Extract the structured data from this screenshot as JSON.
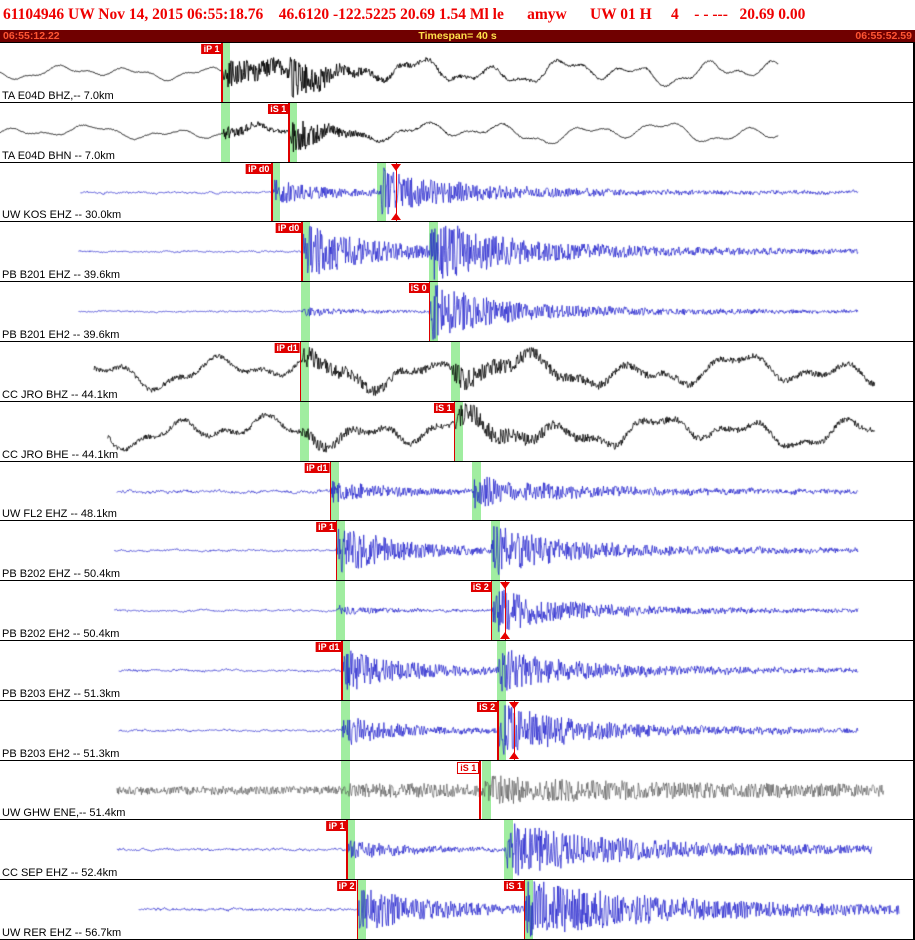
{
  "header": {
    "text": "61104946 UW Nov 14, 2015 06:55:18.76    46.6120 -122.5225 20.69 1.54 Ml le      amyw      UW 01 H     4    - - ---   20.69 0.00",
    "color": "#ee0000"
  },
  "timebar": {
    "start_time": "06:55:12.22",
    "timespan_label": "Timespan= 40 s",
    "end_time": "06:55:52.59",
    "bg": "#700000",
    "time_color": "#ff5533",
    "center_color": "#ffe04a"
  },
  "colors": {
    "band": "#a0eda0",
    "pick_line": "#dd0000",
    "flag_bg": "#e00000",
    "flag_text": "#ffffff",
    "triangle": "#e80000"
  },
  "traces": [
    {
      "id": "ta-e04d-bhz",
      "label": "TA E04D BHZ,-- 7.0km",
      "color": "#000000",
      "lw": 0.9,
      "seed": 101,
      "start_x": 0.0,
      "end_x": 0.853,
      "noise": 0.5,
      "fuzz": 0.3,
      "lf_amp": 5.5,
      "lf_period": 72,
      "post_lf_amp": 10,
      "post_lf_from": 0.36,
      "p_x": 0.2435,
      "p_amp": 13,
      "p_decay": 60,
      "s_x": 0.3165,
      "s_amp": 25,
      "s_decay": 22,
      "s_slow": 0.05,
      "bands": [
        0.2426
      ],
      "picks": [
        {
          "label": "iP 1",
          "x": 0.2426,
          "style": "solid"
        }
      ],
      "triangles": []
    },
    {
      "id": "ta-e04d-bhn",
      "label": "TA E04D BHN -- 7.0km",
      "color": "#000000",
      "lw": 0.9,
      "seed": 202,
      "start_x": 0.0,
      "end_x": 0.853,
      "noise": 0.5,
      "fuzz": 0.3,
      "lf_amp": 5.5,
      "lf_period": 82,
      "post_lf_amp": 8.5,
      "post_lf_from": 0.4,
      "p_x": 0.2435,
      "p_amp": 6,
      "p_decay": 30,
      "s_x": 0.317,
      "s_amp": 27,
      "s_decay": 22,
      "s_slow": 0.06,
      "bands": [
        0.2426,
        0.3158
      ],
      "picks": [
        {
          "label": "iS 1",
          "x": 0.3158,
          "style": "solid"
        }
      ],
      "triangles": []
    },
    {
      "id": "uw-kos-ehz",
      "label": "UW KOS EHZ -- 30.0km",
      "color": "#1c1ccc",
      "lw": 0.7,
      "seed": 303,
      "start_x": 0.088,
      "end_x": 0.94,
      "noise": 0.9,
      "fuzz": 0.5,
      "lf_amp": 0,
      "lf_period": 100,
      "p_x": 0.298,
      "p_amp": 11,
      "p_decay": 45,
      "s_x": 0.4155,
      "s_amp": 18,
      "s_decay": 55,
      "s_slow": 0.3,
      "bands": [
        0.2973,
        0.413
      ],
      "picks": [
        {
          "label": "iP d0",
          "x": 0.2973,
          "style": "solid"
        }
      ],
      "triangles": [
        {
          "x": 0.434,
          "pos": "top"
        },
        {
          "x": 0.434,
          "pos": "bottom"
        }
      ]
    },
    {
      "id": "pb-b201-ehz",
      "label": "PB B201 EHZ -- 39.6km",
      "color": "#1c1ccc",
      "lw": 0.7,
      "seed": 404,
      "start_x": 0.086,
      "end_x": 0.94,
      "noise": 0.8,
      "fuzz": 0.4,
      "lf_amp": 0,
      "lf_period": 100,
      "p_x": 0.3306,
      "p_amp": 24,
      "p_decay": 60,
      "s_x": 0.47,
      "s_amp": 24,
      "s_decay": 55,
      "s_slow": 0.3,
      "bands": [
        0.33,
        0.4695
      ],
      "picks": [
        {
          "label": "iP d0",
          "x": 0.33,
          "style": "solid"
        }
      ],
      "triangles": []
    },
    {
      "id": "pb-b201-eh2",
      "label": "PB B201 EH2 -- 39.6km",
      "color": "#1c1ccc",
      "lw": 0.7,
      "seed": 505,
      "start_x": 0.086,
      "end_x": 0.94,
      "noise": 0.7,
      "fuzz": 0.4,
      "lf_amp": 0,
      "lf_period": 100,
      "p_x": 0.3306,
      "p_amp": 4,
      "p_decay": 50,
      "s_x": 0.47,
      "s_amp": 24,
      "s_decay": 50,
      "s_slow": 0.3,
      "bands": [
        0.33,
        0.4695
      ],
      "picks": [
        {
          "label": "iS 0",
          "x": 0.4695,
          "style": "solid"
        }
      ],
      "triangles": []
    },
    {
      "id": "cc-jro-bhz",
      "label": "CC JRO BHZ -- 44.1km",
      "color": "#000000",
      "lw": 0.8,
      "seed": 606,
      "start_x": 0.103,
      "end_x": 0.958,
      "noise": 0.4,
      "fuzz": 2.4,
      "lf_amp": 13,
      "lf_period": 105,
      "p_x": 0.329,
      "p_amp": 7,
      "p_decay": 50,
      "s_x": 0.4945,
      "s_amp": 9,
      "s_decay": 60,
      "s_slow": 0.1,
      "bands": [
        0.3284,
        0.494
      ],
      "picks": [
        {
          "label": "iP d1",
          "x": 0.3284,
          "style": "solid"
        }
      ],
      "triangles": []
    },
    {
      "id": "cc-jro-bhe",
      "label": "CC JRO BHE -- 44.1km",
      "color": "#000000",
      "lw": 0.8,
      "seed": 707,
      "start_x": 0.118,
      "end_x": 0.958,
      "noise": 0.4,
      "fuzz": 2.4,
      "lf_amp": 12.5,
      "lf_period": 96,
      "p_x": 0.329,
      "p_amp": 4,
      "p_decay": 40,
      "s_x": 0.4973,
      "s_amp": 10,
      "s_decay": 60,
      "s_slow": 0.1,
      "bands": [
        0.3284,
        0.4968
      ],
      "picks": [
        {
          "label": "iS 1",
          "x": 0.4968,
          "style": "solid"
        }
      ],
      "triangles": []
    },
    {
      "id": "uw-fl2-ehz",
      "label": "UW FL2 EHZ -- 48.1km",
      "color": "#1c1ccc",
      "lw": 0.7,
      "seed": 808,
      "start_x": 0.128,
      "end_x": 0.94,
      "noise": 1.3,
      "fuzz": 0.8,
      "lf_amp": 0,
      "lf_period": 100,
      "p_x": 0.3615,
      "p_amp": 9,
      "p_decay": 55,
      "s_x": 0.517,
      "s_amp": 12,
      "s_decay": 60,
      "s_slow": 0.3,
      "bands": [
        0.361,
        0.5165
      ],
      "picks": [
        {
          "label": "iP d1",
          "x": 0.361,
          "style": "solid"
        }
      ],
      "triangles": []
    },
    {
      "id": "pb-b202-ehz",
      "label": "PB B202 EHZ -- 50.4km",
      "color": "#1c1ccc",
      "lw": 0.7,
      "seed": 909,
      "start_x": 0.125,
      "end_x": 0.94,
      "noise": 0.9,
      "fuzz": 0.5,
      "lf_amp": 0,
      "lf_period": 100,
      "p_x": 0.3685,
      "p_amp": 22,
      "p_decay": 50,
      "s_x": 0.538,
      "s_amp": 18,
      "s_decay": 55,
      "s_slow": 0.3,
      "bands": [
        0.368,
        0.5375
      ],
      "picks": [
        {
          "label": "iP 1",
          "x": 0.368,
          "style": "solid"
        }
      ],
      "triangles": []
    },
    {
      "id": "pb-b202-eh2",
      "label": "PB B202 EH2 -- 50.4km",
      "color": "#1c1ccc",
      "lw": 0.7,
      "seed": 1010,
      "start_x": 0.125,
      "end_x": 0.94,
      "noise": 0.8,
      "fuzz": 0.5,
      "lf_amp": 0,
      "lf_period": 100,
      "p_x": 0.3685,
      "p_amp": 4,
      "p_decay": 40,
      "s_x": 0.538,
      "s_amp": 20,
      "s_decay": 50,
      "s_slow": 0.3,
      "bands": [
        0.368,
        0.5375
      ],
      "picks": [
        {
          "label": "iS 2",
          "x": 0.5375,
          "style": "solid"
        }
      ],
      "triangles": [
        {
          "x": 0.553,
          "pos": "top"
        },
        {
          "x": 0.553,
          "pos": "bottom"
        }
      ]
    },
    {
      "id": "pb-b203-ehz",
      "label": "PB B203 EHZ -- 51.3km",
      "color": "#1c1ccc",
      "lw": 0.7,
      "seed": 1111,
      "start_x": 0.13,
      "end_x": 0.94,
      "noise": 1.0,
      "fuzz": 0.6,
      "lf_amp": 0,
      "lf_period": 100,
      "p_x": 0.3745,
      "p_amp": 18,
      "p_decay": 55,
      "s_x": 0.545,
      "s_amp": 16,
      "s_decay": 55,
      "s_slow": 0.3,
      "bands": [
        0.374,
        0.5445
      ],
      "picks": [
        {
          "label": "iP d1",
          "x": 0.374,
          "style": "solid"
        }
      ],
      "triangles": []
    },
    {
      "id": "pb-b203-eh2",
      "label": "PB B203 EH2 -- 51.3km",
      "color": "#1c1ccc",
      "lw": 0.7,
      "seed": 1212,
      "start_x": 0.13,
      "end_x": 0.94,
      "noise": 0.9,
      "fuzz": 0.5,
      "lf_amp": 0,
      "lf_period": 100,
      "p_x": 0.3745,
      "p_amp": 13,
      "p_decay": 50,
      "s_x": 0.545,
      "s_amp": 22,
      "s_decay": 55,
      "s_slow": 0.3,
      "bands": [
        0.374,
        0.5445
      ],
      "picks": [
        {
          "label": "iS 2",
          "x": 0.5445,
          "style": "solid"
        }
      ],
      "triangles": [
        {
          "x": 0.563,
          "pos": "top"
        },
        {
          "x": 0.563,
          "pos": "bottom"
        }
      ]
    },
    {
      "id": "uw-ghw-ene",
      "label": "UW GHW ENE,-- 51.4km",
      "color": "#4d4d4d",
      "lw": 0.6,
      "seed": 1313,
      "start_x": 0.128,
      "end_x": 0.968,
      "noise": 0.5,
      "fuzz": 4.2,
      "lf_amp": 0,
      "lf_period": 100,
      "p_x": 0.376,
      "p_amp": 3,
      "p_decay": 300,
      "s_x": 0.53,
      "s_amp": 7,
      "s_decay": 120,
      "s_slow": 0.25,
      "bands": [
        0.374,
        0.528
      ],
      "picks": [
        {
          "label": "iS 1",
          "x": 0.525,
          "style": "outline"
        }
      ],
      "triangles": []
    },
    {
      "id": "cc-sep-ehz",
      "label": "CC SEP EHZ -- 52.4km",
      "color": "#1c1ccc",
      "lw": 0.7,
      "seed": 1414,
      "start_x": 0.128,
      "end_x": 0.955,
      "noise": 1.1,
      "fuzz": 0.6,
      "lf_amp": 0,
      "lf_period": 100,
      "p_x": 0.38,
      "p_amp": 8,
      "p_decay": 50,
      "s_x": 0.553,
      "s_amp": 20,
      "s_decay": 90,
      "s_slow": 0.35,
      "bands": [
        0.3795,
        0.5525
      ],
      "picks": [
        {
          "label": "iP 1",
          "x": 0.3795,
          "style": "solid"
        }
      ],
      "triangles": []
    },
    {
      "id": "uw-rer-ehz",
      "label": "UW RER EHZ -- 56.7km",
      "color": "#1c1ccc",
      "lw": 0.7,
      "seed": 1515,
      "start_x": 0.152,
      "end_x": 0.985,
      "noise": 1.2,
      "fuzz": 0.7,
      "lf_amp": 0,
      "lf_period": 100,
      "p_x": 0.391,
      "p_amp": 20,
      "p_decay": 60,
      "s_x": 0.5745,
      "s_amp": 22,
      "s_decay": 95,
      "s_slow": 0.35,
      "bands": [
        0.3905,
        0.574
      ],
      "picks": [
        {
          "label": "iP 2",
          "x": 0.3905,
          "style": "solid"
        },
        {
          "label": "iS 1",
          "x": 0.574,
          "style": "solid"
        }
      ],
      "triangles": []
    }
  ]
}
